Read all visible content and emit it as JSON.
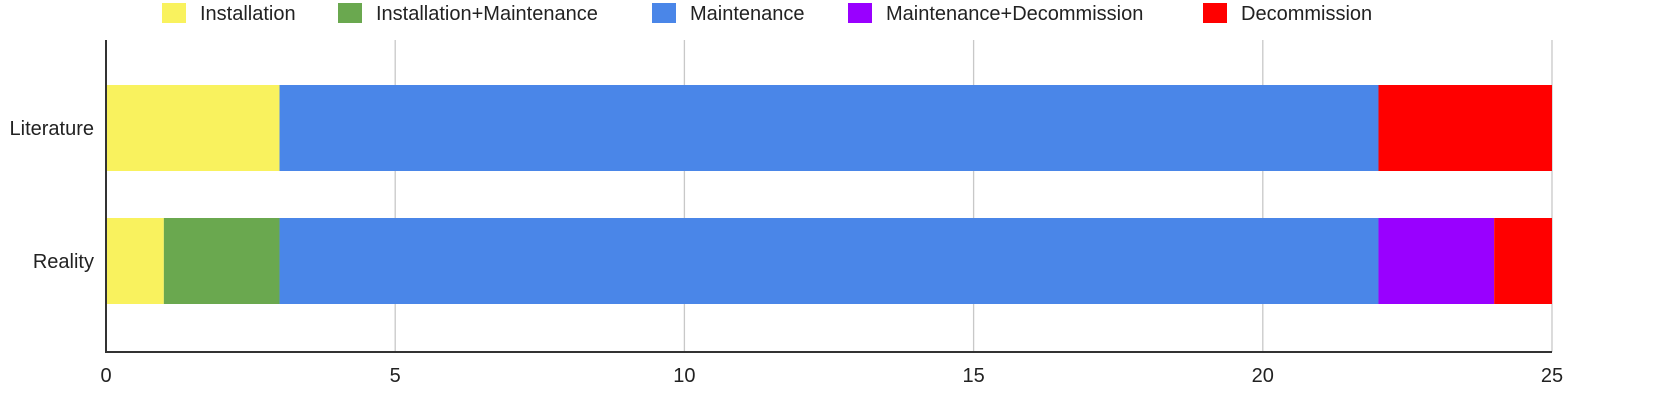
{
  "chart_data": {
    "type": "bar",
    "orientation": "horizontal",
    "stacked": true,
    "title": "",
    "xlabel": "",
    "ylabel": "",
    "xlim": [
      0,
      25
    ],
    "x_ticks": [
      0,
      5,
      10,
      15,
      20,
      25
    ],
    "grid": "vertical",
    "legend_position": "top",
    "categories": [
      "Literature",
      "Reality"
    ],
    "series": [
      {
        "name": "Installation",
        "color": "#f9f25e",
        "values": [
          3,
          1
        ]
      },
      {
        "name": "Installation+Maintenance",
        "color": "#6aa84f",
        "values": [
          0,
          2
        ]
      },
      {
        "name": "Maintenance",
        "color": "#4a86e8",
        "values": [
          19,
          19
        ]
      },
      {
        "name": "Maintenance+Decommission",
        "color": "#9900ff",
        "values": [
          0,
          2
        ]
      },
      {
        "name": "Decommission",
        "color": "#ff0000",
        "values": [
          3,
          1
        ]
      }
    ]
  }
}
